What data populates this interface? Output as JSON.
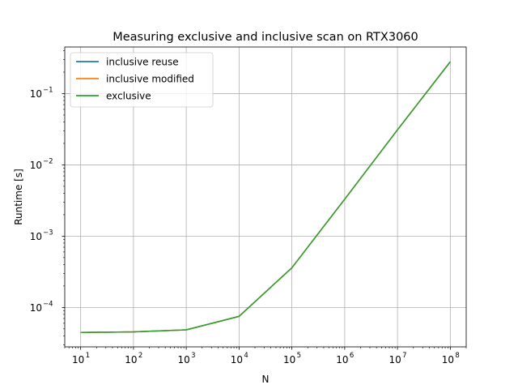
{
  "chart_data": {
    "type": "line",
    "title": "Measuring exclusive and inclusive scan on RTX3060",
    "xlabel": "N",
    "ylabel": "Runtime [s]",
    "xscale": "log",
    "yscale": "log",
    "xlim": [
      5,
      200000000
    ],
    "ylim": [
      2.8e-05,
      0.45
    ],
    "grid": true,
    "legend_position": "upper left",
    "x_ticks": [
      {
        "base": "10",
        "exp": "1",
        "value": 10
      },
      {
        "base": "10",
        "exp": "2",
        "value": 100
      },
      {
        "base": "10",
        "exp": "3",
        "value": 1000
      },
      {
        "base": "10",
        "exp": "4",
        "value": 10000
      },
      {
        "base": "10",
        "exp": "5",
        "value": 100000
      },
      {
        "base": "10",
        "exp": "6",
        "value": 1000000
      },
      {
        "base": "10",
        "exp": "7",
        "value": 10000000
      },
      {
        "base": "10",
        "exp": "8",
        "value": 100000000
      }
    ],
    "y_ticks": [
      {
        "base": "10",
        "exp": "−4",
        "value": 0.0001
      },
      {
        "base": "10",
        "exp": "−3",
        "value": 0.001
      },
      {
        "base": "10",
        "exp": "−2",
        "value": 0.01
      },
      {
        "base": "10",
        "exp": "−1",
        "value": 0.1
      }
    ],
    "x": [
      10,
      100,
      1000,
      10000,
      100000,
      1000000,
      10000000,
      100000000
    ],
    "series": [
      {
        "name": "inclusive reuse",
        "color": "#1f77b4",
        "values": [
          4.45e-05,
          4.55e-05,
          4.85e-05,
          7.5e-05,
          0.00036,
          0.0033,
          0.031,
          0.28
        ]
      },
      {
        "name": "inclusive modified",
        "color": "#ff7f0e",
        "values": [
          4.45e-05,
          4.55e-05,
          4.85e-05,
          7.5e-05,
          0.00036,
          0.0033,
          0.031,
          0.28
        ]
      },
      {
        "name": "exclusive",
        "color": "#2ca02c",
        "values": [
          4.45e-05,
          4.55e-05,
          4.85e-05,
          7.5e-05,
          0.00036,
          0.0033,
          0.031,
          0.28
        ]
      }
    ]
  }
}
